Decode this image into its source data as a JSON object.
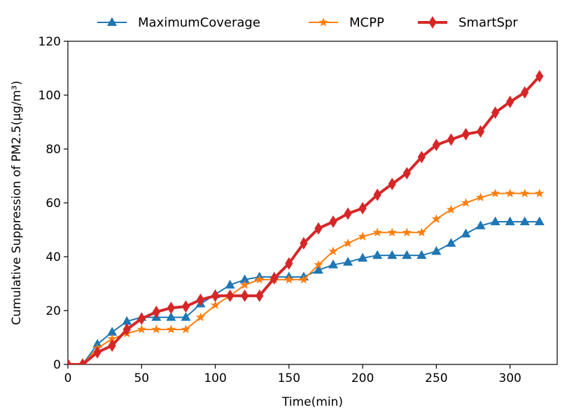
{
  "chart_data": {
    "type": "line",
    "title": "",
    "xlabel": "Time(min)",
    "ylabel": "Cumulative Suppression of PM2.5(μg/m³)",
    "xlim": [
      0,
      332
    ],
    "ylim": [
      0,
      120
    ],
    "xticks": [
      0,
      50,
      100,
      150,
      200,
      250,
      300
    ],
    "yticks": [
      0,
      20,
      40,
      60,
      80,
      100,
      120
    ],
    "grid": false,
    "legend_position": "top-center",
    "x": [
      0,
      10,
      20,
      30,
      40,
      50,
      60,
      70,
      80,
      90,
      100,
      110,
      120,
      130,
      140,
      150,
      160,
      170,
      180,
      190,
      200,
      210,
      220,
      230,
      240,
      250,
      260,
      270,
      280,
      290,
      300,
      310,
      320
    ],
    "series": [
      {
        "name": "MaximumCoverage",
        "color": "#1f77b4",
        "marker": "triangle",
        "values": [
          0,
          0,
          7.5,
          12,
          16,
          17.5,
          17.5,
          17.5,
          17.5,
          22.5,
          26,
          29.5,
          31.5,
          32.5,
          32.5,
          32.5,
          32.5,
          35,
          37,
          38,
          39.5,
          40.5,
          40.5,
          40.5,
          40.5,
          42,
          45,
          48.5,
          51.5,
          53,
          53,
          53,
          53
        ]
      },
      {
        "name": "MCPP",
        "color": "#ff7f0e",
        "marker": "star",
        "values": [
          0,
          0,
          6,
          9.5,
          11.5,
          13,
          13,
          13,
          13,
          17.5,
          22,
          25.5,
          29.5,
          31.5,
          31.5,
          31.5,
          31.5,
          37,
          42,
          45,
          47.5,
          49,
          49,
          49,
          49,
          54,
          57.5,
          60,
          62,
          63.5,
          63.5,
          63.5,
          63.5
        ]
      },
      {
        "name": "SmartSpr",
        "color": "#d62728",
        "marker": "thin-diamond",
        "values": [
          0,
          0,
          4.5,
          7,
          13,
          17,
          19.5,
          21,
          21.5,
          24,
          25.5,
          25.5,
          25.5,
          25.5,
          32,
          37.5,
          45,
          50.5,
          53,
          56,
          58,
          63,
          67,
          71,
          77,
          81.5,
          83.5,
          85.5,
          86.5,
          93.5,
          97.5,
          101,
          107
        ]
      }
    ]
  }
}
